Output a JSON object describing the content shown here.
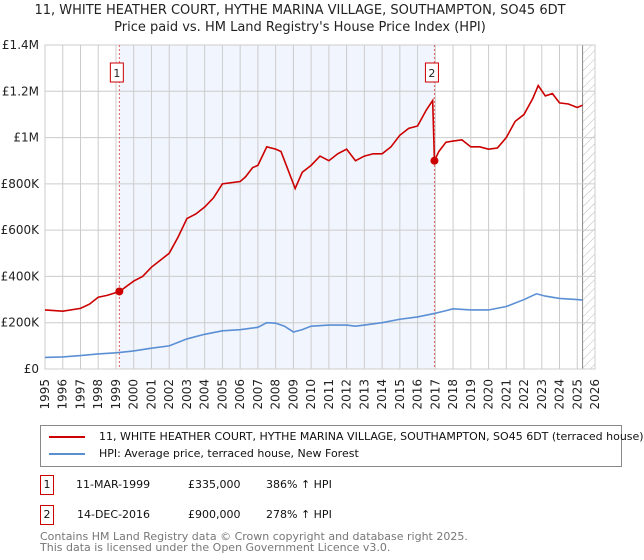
{
  "chart_data": {
    "type": "line",
    "title": "11, WHITE HEATHER COURT, HYTHE MARINA VILLAGE, SOUTHAMPTON, SO45 6DT",
    "subtitle": "Price paid vs. HM Land Registry's House Price Index (HPI)",
    "xlabel": "",
    "ylabel": "",
    "xlim": [
      1995,
      2026
    ],
    "ylim": [
      0,
      1400000
    ],
    "x_ticks": [
      "1995",
      "1996",
      "1997",
      "1998",
      "1999",
      "2000",
      "2001",
      "2002",
      "2003",
      "2004",
      "2005",
      "2006",
      "2007",
      "2008",
      "2009",
      "2010",
      "2011",
      "2012",
      "2013",
      "2014",
      "2015",
      "2016",
      "2017",
      "2018",
      "2019",
      "2020",
      "2021",
      "2022",
      "2023",
      "2024",
      "2025",
      "2026"
    ],
    "y_ticks": [
      {
        "v": 0,
        "label": "£0"
      },
      {
        "v": 200000,
        "label": "£200K"
      },
      {
        "v": 400000,
        "label": "£400K"
      },
      {
        "v": 600000,
        "label": "£600K"
      },
      {
        "v": 800000,
        "label": "£800K"
      },
      {
        "v": 1000000,
        "label": "£1M"
      },
      {
        "v": 1200000,
        "label": "£1.2M"
      },
      {
        "v": 1400000,
        "label": "£1.4M"
      }
    ],
    "grid": true,
    "series": [
      {
        "name": "11, WHITE HEATHER COURT, HYTHE MARINA VILLAGE, SOUTHAMPTON, SO45 6DT (terraced house)",
        "color": "#cc0000",
        "x": [
          1995,
          1996,
          1997,
          1997.5,
          1998,
          1998.5,
          1999.2,
          2000,
          2000.5,
          2001,
          2001.5,
          2002,
          2002.5,
          2003,
          2003.5,
          2004,
          2004.5,
          2005,
          2006,
          2006.3,
          2006.7,
          2007,
          2007.5,
          2008,
          2008.3,
          2008.7,
          2009,
          2009.1,
          2009.5,
          2010,
          2010.5,
          2011,
          2011.5,
          2012,
          2012.5,
          2013,
          2013.5,
          2014,
          2014.5,
          2015,
          2015.5,
          2016,
          2016.5,
          2016.85,
          2016.95,
          2017.2,
          2017.6,
          2018,
          2018.5,
          2019,
          2019.5,
          2020,
          2020.5,
          2021,
          2021.5,
          2022,
          2022.5,
          2022.8,
          2023.2,
          2023.6,
          2024,
          2024.5,
          2025,
          2025.3
        ],
        "y": [
          255000,
          250000,
          262000,
          280000,
          310000,
          318000,
          335000,
          380000,
          400000,
          440000,
          470000,
          500000,
          570000,
          650000,
          670000,
          700000,
          740000,
          800000,
          810000,
          830000,
          870000,
          880000,
          960000,
          950000,
          940000,
          860000,
          800000,
          780000,
          850000,
          880000,
          920000,
          900000,
          930000,
          950000,
          900000,
          920000,
          930000,
          930000,
          960000,
          1010000,
          1040000,
          1050000,
          1120000,
          1160000,
          900000,
          940000,
          980000,
          985000,
          990000,
          960000,
          960000,
          950000,
          955000,
          1000000,
          1070000,
          1100000,
          1170000,
          1225000,
          1180000,
          1190000,
          1150000,
          1145000,
          1130000,
          1140000
        ]
      },
      {
        "name": "HPI: Average price, terraced house, New Forest",
        "color": "#5b8fd4",
        "x": [
          1995,
          1996,
          1997,
          1998,
          1999,
          2000,
          2001,
          2002,
          2003,
          2004,
          2005,
          2006,
          2007,
          2007.5,
          2008,
          2008.5,
          2009,
          2009.5,
          2010,
          2011,
          2012,
          2012.5,
          2013,
          2014,
          2015,
          2016,
          2016.95,
          2017.5,
          2018,
          2019,
          2020,
          2021,
          2022,
          2022.7,
          2023.2,
          2024,
          2025,
          2025.3
        ],
        "y": [
          50000,
          52000,
          58000,
          65000,
          70000,
          78000,
          90000,
          100000,
          130000,
          150000,
          165000,
          170000,
          180000,
          200000,
          198000,
          185000,
          160000,
          170000,
          185000,
          190000,
          190000,
          185000,
          190000,
          200000,
          215000,
          225000,
          240000,
          250000,
          260000,
          255000,
          255000,
          270000,
          300000,
          325000,
          315000,
          305000,
          300000,
          298000
        ]
      }
    ],
    "sales": [
      {
        "n": "1",
        "x": 1999.19,
        "y": 335000
      },
      {
        "n": "2",
        "x": 2016.95,
        "y": 900000
      }
    ],
    "legend_placement": "bottom"
  },
  "legend": {
    "red": "11, WHITE HEATHER COURT, HYTHE MARINA VILLAGE, SOUTHAMPTON, SO45 6DT (terraced house)",
    "blue": "HPI: Average price, terraced house, New Forest"
  },
  "table": [
    {
      "n": "1",
      "date": "11-MAR-1999",
      "price": "£335,000",
      "hpi": "386% ↑ HPI"
    },
    {
      "n": "2",
      "date": "14-DEC-2016",
      "price": "£900,000",
      "hpi": "278% ↑ HPI"
    }
  ],
  "footer": {
    "line1": "Contains HM Land Registry data © Crown copyright and database right 2025.",
    "line2": "This data is licensed under the Open Government Licence v3.0."
  }
}
